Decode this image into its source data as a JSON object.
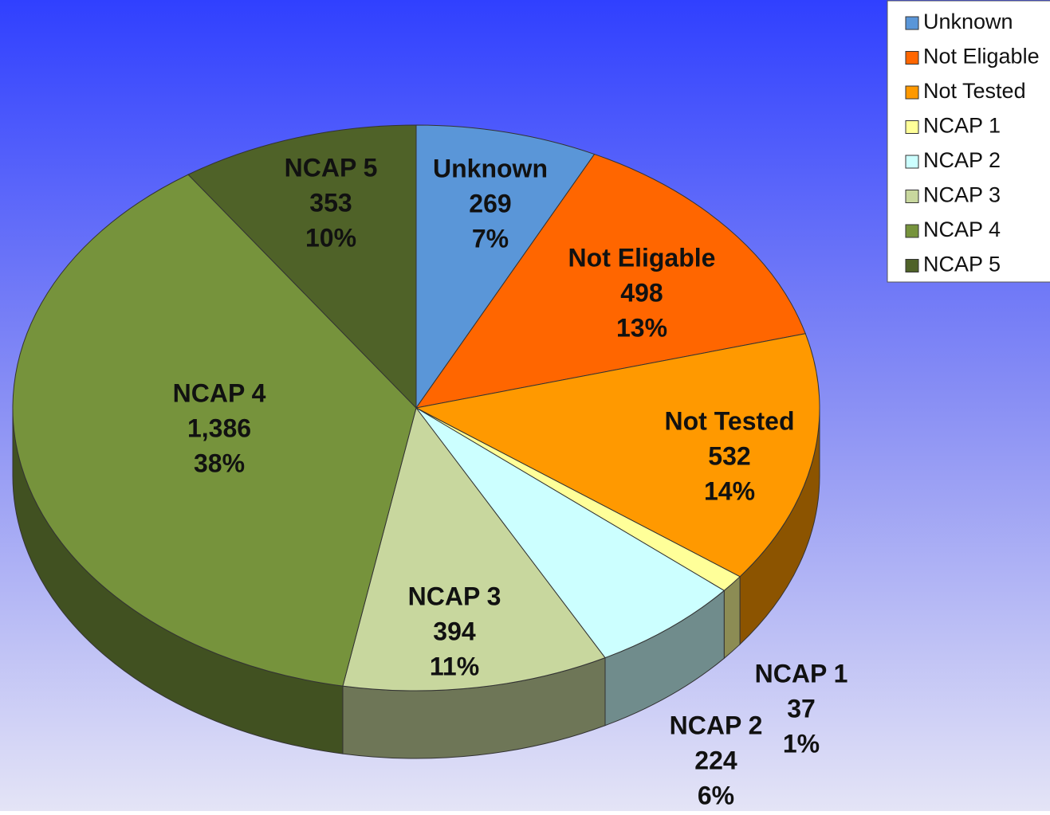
{
  "chart_data": {
    "type": "pie",
    "categories": [
      "Unknown",
      "Not Eligable",
      "Not Tested",
      "NCAP 1",
      "NCAP 2",
      "NCAP 3",
      "NCAP 4",
      "NCAP 5"
    ],
    "values": [
      269,
      498,
      532,
      37,
      224,
      394,
      1386,
      353
    ],
    "value_labels": [
      "269",
      "498",
      "532",
      "37",
      "224",
      "394",
      "1,386",
      "353"
    ],
    "percent_labels": [
      "7%",
      "13%",
      "14%",
      "1%",
      "6%",
      "11%",
      "38%",
      "10%"
    ],
    "colors": [
      "#5a96d8",
      "#ff6600",
      "#ff9900",
      "#ffff99",
      "#ccffff",
      "#c8d79e",
      "#76933c",
      "#4f6228"
    ],
    "legend": "top-right"
  }
}
